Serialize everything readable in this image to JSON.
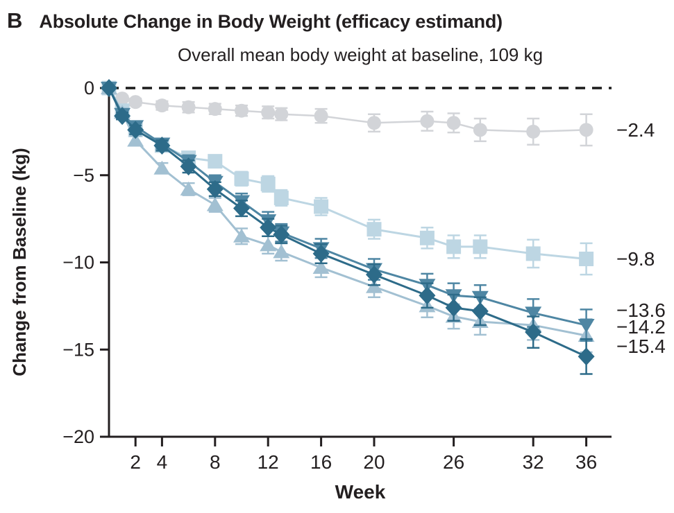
{
  "panel": {
    "letter": "B",
    "title": "Absolute Change in Body Weight (efficacy estimand)"
  },
  "chart_data": {
    "type": "line",
    "subtitle": "Overall mean body weight at baseline, 109 kg",
    "xlabel": "Week",
    "ylabel": "Change from Baseline (kg)",
    "xlim": [
      0,
      37.5
    ],
    "ylim": [
      -20,
      0
    ],
    "x_ticks": [
      2,
      4,
      8,
      12,
      16,
      20,
      26,
      32,
      36
    ],
    "y_ticks": [
      0,
      -5,
      -10,
      -15,
      -20
    ],
    "grid": false,
    "legend": "none (series identified by end-of-line value labels)",
    "zero_reference_line": true,
    "axis_color": "#231f20",
    "weeks": [
      0,
      1,
      2,
      4,
      6,
      8,
      10,
      12,
      13,
      16,
      20,
      24,
      26,
      28,
      32,
      36
    ],
    "series": [
      {
        "name": "circle-series",
        "marker": "circle",
        "color": "#d2d4d8",
        "end_label": "−2.4",
        "values": [
          0,
          -0.6,
          -0.8,
          -1.0,
          -1.1,
          -1.2,
          -1.3,
          -1.4,
          -1.5,
          -1.6,
          -2.0,
          -1.9,
          -2.0,
          -2.4,
          -2.5,
          -2.4
        ],
        "errors": [
          0,
          0.15,
          0.2,
          0.25,
          0.3,
          0.3,
          0.3,
          0.35,
          0.35,
          0.4,
          0.5,
          0.55,
          0.55,
          0.65,
          0.75,
          0.9
        ]
      },
      {
        "name": "square-series",
        "marker": "square",
        "color": "#bdd6e3",
        "end_label": "−9.8",
        "values": [
          0,
          -1.3,
          -2.4,
          -3.3,
          -4.0,
          -4.2,
          -5.2,
          -5.5,
          -6.3,
          -6.8,
          -8.1,
          -8.6,
          -9.1,
          -9.1,
          -9.5,
          -9.8
        ],
        "errors": [
          0,
          0.2,
          0.25,
          0.3,
          0.3,
          0.35,
          0.4,
          0.45,
          0.45,
          0.5,
          0.55,
          0.6,
          0.65,
          0.65,
          0.8,
          0.9
        ]
      },
      {
        "name": "triangle-up-series",
        "marker": "triangle-up",
        "color": "#a2c0d2",
        "end_label": "−14.2",
        "values": [
          0,
          -1.4,
          -3.0,
          -4.6,
          -5.8,
          -6.7,
          -8.5,
          -9.0,
          -9.4,
          -10.3,
          -11.4,
          -12.5,
          -13.1,
          -13.4,
          -13.6,
          -14.2
        ],
        "errors": [
          0,
          0.2,
          0.25,
          0.3,
          0.35,
          0.4,
          0.45,
          0.5,
          0.5,
          0.55,
          0.6,
          0.65,
          0.7,
          0.75,
          0.85,
          0.95
        ]
      },
      {
        "name": "triangle-down-series",
        "marker": "triangle-down",
        "color": "#4e86a3",
        "end_label": "−13.6",
        "values": [
          0,
          -1.5,
          -2.2,
          -3.2,
          -4.2,
          -5.4,
          -6.5,
          -7.6,
          -8.3,
          -9.2,
          -10.4,
          -11.3,
          -11.9,
          -12.0,
          -12.9,
          -13.6
        ],
        "errors": [
          0,
          0.2,
          0.25,
          0.3,
          0.35,
          0.4,
          0.45,
          0.5,
          0.5,
          0.55,
          0.6,
          0.65,
          0.7,
          0.7,
          0.8,
          0.9
        ]
      },
      {
        "name": "diamond-series",
        "marker": "diamond",
        "color": "#2d6b89",
        "end_label": "−15.4",
        "values": [
          0,
          -1.6,
          -2.4,
          -3.3,
          -4.5,
          -5.8,
          -6.9,
          -8.0,
          -8.4,
          -9.5,
          -10.7,
          -11.9,
          -12.6,
          -12.8,
          -14.0,
          -15.4
        ],
        "errors": [
          0,
          0.2,
          0.25,
          0.3,
          0.35,
          0.4,
          0.45,
          0.5,
          0.5,
          0.55,
          0.6,
          0.7,
          0.75,
          0.8,
          0.9,
          1.0
        ]
      }
    ]
  }
}
